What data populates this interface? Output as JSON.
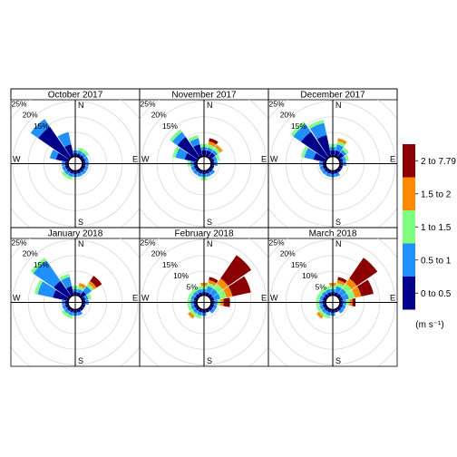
{
  "chart_data": {
    "type": "windrose",
    "directions": [
      "N",
      "NNE",
      "NE",
      "ENE",
      "E",
      "ESE",
      "SE",
      "SSE",
      "S",
      "SSW",
      "SW",
      "WSW",
      "W",
      "WNW",
      "NW",
      "NNW"
    ],
    "radial_ticks": [
      "5%",
      "10%",
      "15%",
      "20%",
      "25%",
      "%"
    ],
    "radial_tick_values": [
      5,
      10,
      15,
      20,
      25,
      30
    ],
    "cardinal_labels": {
      "N": "N",
      "E": "E",
      "S": "S",
      "W": "W"
    },
    "legend": {
      "unit": "(m s⁻¹)",
      "bins": [
        {
          "label": "0 to 0.5",
          "color": "#00008b"
        },
        {
          "label": "0.5 to 1",
          "color": "#1e90ff"
        },
        {
          "label": "1 to 1.5",
          "color": "#7fff7f"
        },
        {
          "label": "1.5 to 2",
          "color": "#ff8c00"
        },
        {
          "label": "2 to 7.79",
          "color": "#8b0000"
        }
      ]
    },
    "panels": [
      {
        "title": "October 2017",
        "show_ticks": [
          "15%",
          "20%",
          "25%",
          "%"
        ],
        "values": [
          [
            1,
            1,
            0,
            0,
            0
          ],
          [
            1,
            1,
            1,
            0,
            0
          ],
          [
            1,
            1,
            1,
            0,
            0
          ],
          [
            1,
            1,
            0,
            0,
            0
          ],
          [
            1,
            1,
            0,
            0,
            0
          ],
          [
            1,
            1,
            0,
            0,
            0
          ],
          [
            1,
            1,
            0,
            0,
            0
          ],
          [
            1,
            1,
            0,
            0,
            0
          ],
          [
            1,
            1,
            0,
            0,
            0
          ],
          [
            1,
            1,
            1,
            0,
            0
          ],
          [
            1,
            1,
            1,
            0,
            0
          ],
          [
            1,
            1,
            0,
            0,
            0
          ],
          [
            1,
            1,
            0,
            0,
            0
          ],
          [
            4,
            2,
            0,
            0,
            0
          ],
          [
            12,
            3,
            0,
            0,
            0
          ],
          [
            4,
            4,
            0,
            0,
            0
          ]
        ]
      },
      {
        "title": "November 2017",
        "show_ticks": [
          "15%",
          "20%",
          "25%",
          "%"
        ],
        "values": [
          [
            2,
            1,
            1,
            0,
            0
          ],
          [
            2,
            1,
            1,
            1,
            1
          ],
          [
            2,
            1,
            1,
            1,
            0
          ],
          [
            1,
            1,
            1,
            0,
            0
          ],
          [
            1,
            1,
            0,
            0,
            0
          ],
          [
            1,
            0,
            0,
            0,
            0
          ],
          [
            1,
            1,
            0,
            0,
            0
          ],
          [
            1,
            1,
            0,
            0,
            0
          ],
          [
            1,
            1,
            1,
            0,
            0
          ],
          [
            1,
            1,
            0,
            0,
            0
          ],
          [
            1,
            1,
            0,
            0,
            0
          ],
          [
            1,
            1,
            0,
            0,
            0
          ],
          [
            1,
            1,
            1,
            0,
            0
          ],
          [
            4,
            3,
            1,
            0,
            0
          ],
          [
            8,
            2,
            1,
            0,
            0
          ],
          [
            4,
            2,
            1,
            0,
            0
          ]
        ]
      },
      {
        "title": "December 2017",
        "show_ticks": [
          "15%",
          "20%",
          "25%",
          "%"
        ],
        "values": [
          [
            2,
            1,
            1,
            0,
            0
          ],
          [
            2,
            2,
            1,
            1,
            0
          ],
          [
            2,
            1,
            1,
            0,
            0
          ],
          [
            1,
            1,
            1,
            0,
            0
          ],
          [
            1,
            1,
            0,
            0,
            0
          ],
          [
            1,
            0,
            0,
            0,
            0
          ],
          [
            1,
            0,
            0,
            0,
            0
          ],
          [
            1,
            1,
            0,
            0,
            0
          ],
          [
            1,
            1,
            0,
            0,
            0
          ],
          [
            1,
            1,
            0,
            0,
            0
          ],
          [
            1,
            1,
            0,
            0,
            0
          ],
          [
            1,
            1,
            0,
            0,
            0
          ],
          [
            1,
            1,
            0,
            0,
            0
          ],
          [
            4,
            3,
            1,
            0,
            0
          ],
          [
            10,
            3,
            1,
            0,
            0
          ],
          [
            7,
            4,
            1,
            0,
            0
          ]
        ]
      },
      {
        "title": "January 2018",
        "show_ticks": [
          "15%",
          "20%",
          "25%",
          "%"
        ],
        "values": [
          [
            1,
            1,
            1,
            0,
            0
          ],
          [
            1,
            1,
            1,
            1,
            0
          ],
          [
            2,
            2,
            1,
            1,
            2
          ],
          [
            1,
            1,
            1,
            0,
            0
          ],
          [
            1,
            1,
            0,
            0,
            0
          ],
          [
            1,
            0,
            0,
            0,
            0
          ],
          [
            1,
            0,
            0,
            0,
            0
          ],
          [
            1,
            1,
            0,
            0,
            0
          ],
          [
            1,
            1,
            0,
            0,
            0
          ],
          [
            1,
            1,
            1,
            0,
            0
          ],
          [
            1,
            1,
            1,
            0,
            0
          ],
          [
            1,
            1,
            0,
            0,
            0
          ],
          [
            1,
            1,
            0,
            0,
            0
          ],
          [
            5,
            5,
            1,
            0,
            0
          ],
          [
            6,
            8,
            1,
            0,
            0
          ],
          [
            3,
            3,
            1,
            0,
            0
          ]
        ]
      },
      {
        "title": "February 2018",
        "show_ticks": [
          "5%",
          "10%",
          "15%",
          "20%",
          "25%",
          "%"
        ],
        "values": [
          [
            1,
            1,
            1,
            1,
            0
          ],
          [
            1,
            2,
            1,
            1,
            1
          ],
          [
            1,
            2,
            2,
            2,
            9
          ],
          [
            1,
            2,
            2,
            2,
            6
          ],
          [
            1,
            1,
            1,
            1,
            2
          ],
          [
            1,
            1,
            0,
            0,
            0
          ],
          [
            1,
            1,
            0,
            0,
            0
          ],
          [
            1,
            0,
            0,
            0,
            0
          ],
          [
            1,
            1,
            0,
            0,
            0
          ],
          [
            1,
            1,
            1,
            0,
            0
          ],
          [
            1,
            1,
            1,
            1,
            0
          ],
          [
            1,
            1,
            1,
            0,
            0
          ],
          [
            1,
            1,
            1,
            0,
            0
          ],
          [
            1,
            1,
            1,
            0,
            0
          ],
          [
            1,
            1,
            1,
            0,
            0
          ],
          [
            1,
            1,
            1,
            0,
            0
          ]
        ]
      },
      {
        "title": "March 2018",
        "show_ticks": [
          "5%",
          "10%",
          "15%",
          "20%",
          "25%",
          "%"
        ],
        "values": [
          [
            1,
            1,
            1,
            1,
            0
          ],
          [
            1,
            2,
            1,
            1,
            1
          ],
          [
            1,
            2,
            2,
            2,
            8
          ],
          [
            1,
            2,
            2,
            2,
            4
          ],
          [
            1,
            1,
            1,
            1,
            1
          ],
          [
            1,
            1,
            0,
            0,
            0
          ],
          [
            1,
            1,
            0,
            0,
            0
          ],
          [
            1,
            0,
            0,
            0,
            0
          ],
          [
            1,
            1,
            0,
            0,
            0
          ],
          [
            1,
            1,
            1,
            0,
            0
          ],
          [
            1,
            1,
            1,
            1,
            0
          ],
          [
            1,
            1,
            1,
            0,
            0
          ],
          [
            1,
            1,
            1,
            0,
            0
          ],
          [
            1,
            1,
            1,
            0,
            0
          ],
          [
            1,
            1,
            1,
            0,
            0
          ],
          [
            1,
            1,
            1,
            0,
            0
          ]
        ]
      }
    ]
  }
}
